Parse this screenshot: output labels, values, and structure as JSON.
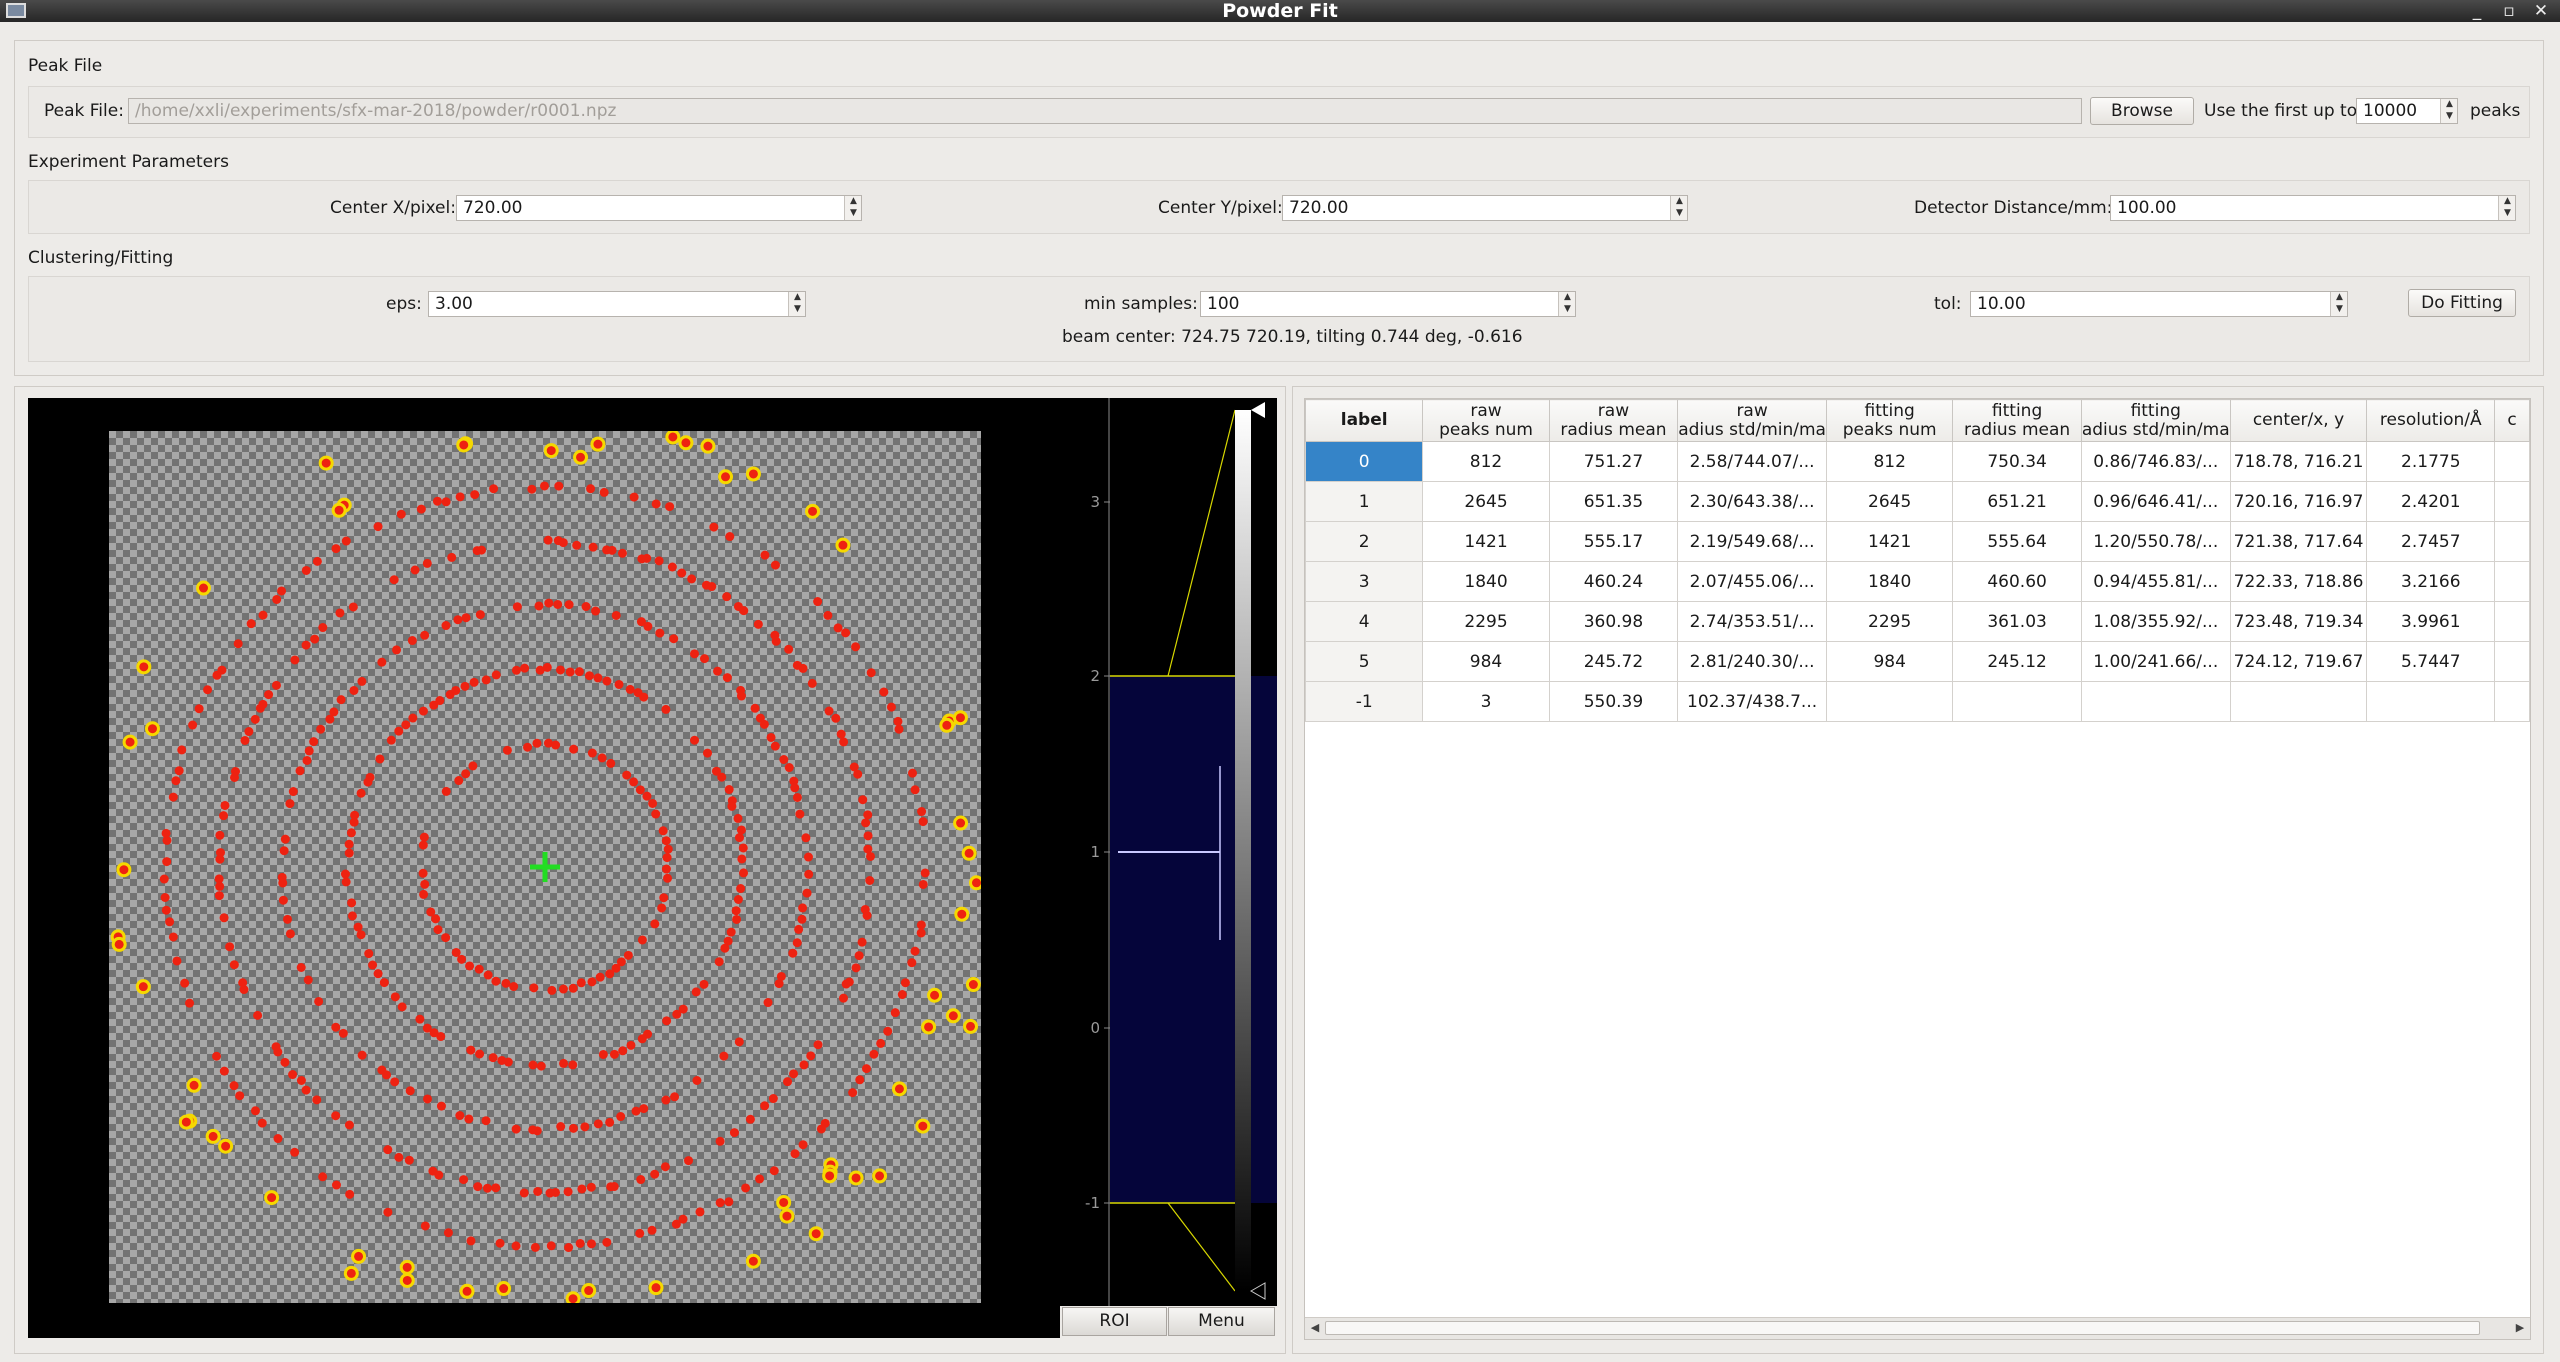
{
  "window": {
    "title": "Powder Fit",
    "minimize": "_",
    "maximize": "▫",
    "close": "✕"
  },
  "peak_file": {
    "group_title": "Peak File",
    "label": "Peak File:",
    "path": "/home/xxli/experiments/sfx-mar-2018/powder/r0001.npz",
    "browse": "Browse",
    "use_first_label": "Use the first up to",
    "max_peaks": "10000",
    "peaks_unit": "peaks"
  },
  "experiment": {
    "group_title": "Experiment Parameters",
    "center_x_label": "Center X/pixel:",
    "center_x": "720.00",
    "center_y_label": "Center Y/pixel:",
    "center_y": "720.00",
    "distance_label": "Detector Distance/mm:",
    "distance": "100.00"
  },
  "clustering": {
    "group_title": "Clustering/Fitting",
    "eps_label": "eps:",
    "eps": "3.00",
    "min_samples_label": "min samples:",
    "min_samples": "100",
    "tol_label": "tol:",
    "tol": "10.00",
    "do_fitting": "Do Fitting",
    "status": "beam center: 724.75 720.19, tilting 0.744 deg, -0.616"
  },
  "histogram": {
    "ticks": [
      "3",
      "2",
      "1",
      "0",
      "-1"
    ],
    "roi": "ROI",
    "menu": "Menu"
  },
  "table": {
    "headers": [
      [
        "label"
      ],
      [
        "raw",
        "peaks num"
      ],
      [
        "raw",
        "radius mean"
      ],
      [
        "raw",
        "adius std/min/ma"
      ],
      [
        "fitting",
        "peaks num"
      ],
      [
        "fitting",
        "radius mean"
      ],
      [
        "fitting",
        "adius std/min/ma"
      ],
      [
        "center/x, y"
      ],
      [
        "resolution/Å"
      ],
      [
        "c"
      ]
    ],
    "rows": [
      [
        "0",
        "812",
        "751.27",
        "2.58/744.07/...",
        "812",
        "750.34",
        "0.86/746.83/...",
        "718.78, 716.21",
        "2.1775",
        ""
      ],
      [
        "1",
        "2645",
        "651.35",
        "2.30/643.38/...",
        "2645",
        "651.21",
        "0.96/646.41/...",
        "720.16, 716.97",
        "2.4201",
        ""
      ],
      [
        "2",
        "1421",
        "555.17",
        "2.19/549.68/...",
        "1421",
        "555.64",
        "1.20/550.78/...",
        "721.38, 717.64",
        "2.7457",
        ""
      ],
      [
        "3",
        "1840",
        "460.24",
        "2.07/455.06/...",
        "1840",
        "460.60",
        "0.94/455.81/...",
        "722.33, 718.86",
        "3.2166",
        ""
      ],
      [
        "4",
        "2295",
        "360.98",
        "2.74/353.51/...",
        "2295",
        "361.03",
        "1.08/355.92/...",
        "723.48, 719.34",
        "3.9961",
        ""
      ],
      [
        "5",
        "984",
        "245.72",
        "2.81/240.30/...",
        "984",
        "245.12",
        "1.00/241.66/...",
        "724.12, 719.67",
        "5.7447",
        ""
      ],
      [
        "-1",
        "3",
        "550.39",
        "102.37/438.7...",
        "",
        "",
        "",
        "",
        "",
        ""
      ]
    ],
    "selected_row": 0
  },
  "colors": {
    "ring_peak": "#ee2211",
    "outlier_peak": "#f5d800",
    "center_marker": "#22dd22",
    "histogram_fill": "#05053a",
    "histogram_line": "#d8d800",
    "selection": "#3584c8"
  }
}
